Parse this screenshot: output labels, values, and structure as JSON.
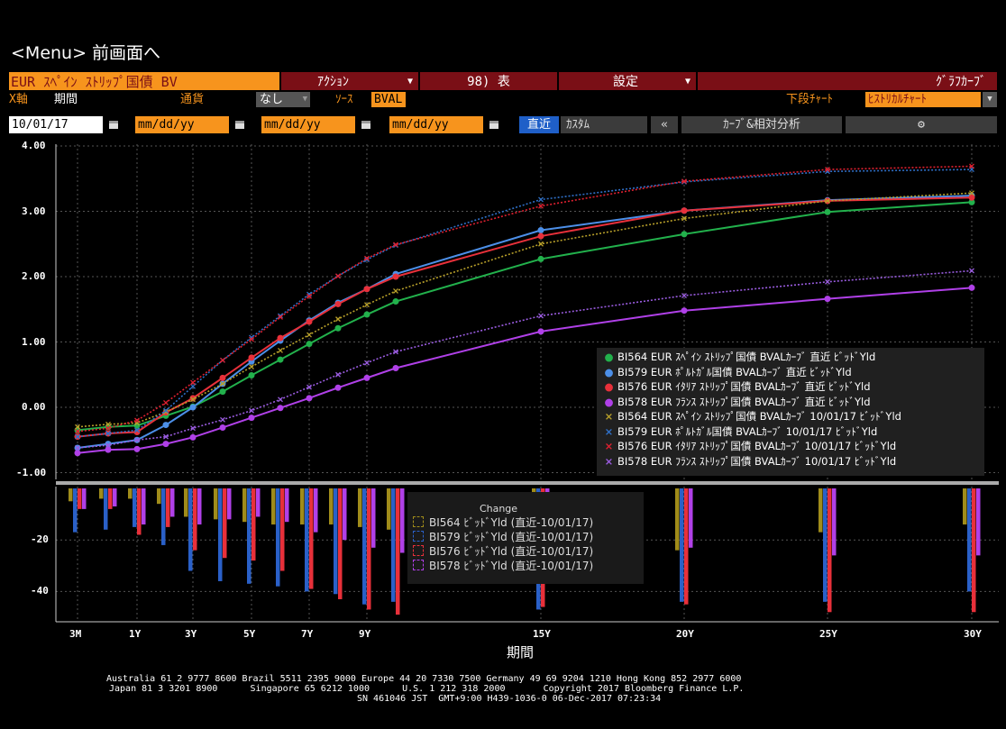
{
  "menu": "<Menu> 前画面へ",
  "toolbar": {
    "security": "EUR ｽﾍﾟｲﾝ ｽﾄﾘｯﾌﾟ国債 BV",
    "actions": "ｱｸｼｮﾝ",
    "table": "98) 表",
    "settings": "設定",
    "graph": "ｸﾞﾗﾌｶｰﾌﾞ"
  },
  "row2": {
    "xaxis_label": "X軸",
    "xaxis_value": "期間",
    "currency_label": "通貨",
    "currency_value": "なし",
    "source_label": "ｿｰｽ",
    "source_value": "BVAL",
    "lower_chart_label": "下段ﾁｬｰﾄ",
    "lower_chart_value": "ﾋｽﾄﾘｶﾙﾁｬｰﾄ"
  },
  "row3": {
    "date1": "10/01/17",
    "date2": "mm/dd/yy",
    "date3": "mm/dd/yy",
    "date4": "mm/dd/yy",
    "recent_button": "直近",
    "custom_button": "ｶｽﾀﾑ",
    "collapse": "«",
    "curve_analysis": "ｶｰﾌﾞ&相対分析",
    "gear": "⚙"
  },
  "chart_data": [
    {
      "type": "line",
      "x": [
        "3M",
        "6M",
        "1Y",
        "2Y",
        "3Y",
        "4Y",
        "5Y",
        "6Y",
        "7Y",
        "8Y",
        "9Y",
        "10Y",
        "15Y",
        "20Y",
        "25Y",
        "30Y"
      ],
      "xticks": [
        "3M",
        "1Y",
        "3Y",
        "5Y",
        "7Y",
        "9Y",
        "15Y",
        "20Y",
        "25Y",
        "30Y"
      ],
      "xlabel": "期間",
      "ylim": [
        -1.0,
        4.0
      ],
      "yticks": [
        "4.00",
        "3.00",
        "2.00",
        "1.00",
        "0.00",
        "-1.00"
      ],
      "grid": true,
      "legend": "bottom-right",
      "series": [
        {
          "name": "BI564 EUR ｽﾍﾟｲﾝ ｽﾄﾘｯﾌﾟ国債 BVALｶｰﾌﾞ 直近 ﾋﾞｯﾄﾞYld",
          "color": "#22b14c",
          "style": "solid",
          "marker": "dot",
          "values": [
            -0.35,
            -0.3,
            -0.28,
            -0.13,
            0.01,
            0.24,
            0.49,
            0.73,
            0.97,
            1.21,
            1.42,
            1.62,
            2.27,
            2.65,
            2.99,
            3.14
          ]
        },
        {
          "name": "BI579 EUR ﾎﾟﾙﾄｶﾞﾙ国債 BVALｶｰﾌﾞ 直近 ﾋﾞｯﾄﾞYld",
          "color": "#4c8fe8",
          "style": "solid",
          "marker": "dot",
          "values": [
            -0.62,
            -0.56,
            -0.5,
            -0.27,
            0.0,
            0.36,
            0.7,
            1.02,
            1.33,
            1.6,
            1.81,
            2.04,
            2.71,
            3.01,
            3.17,
            3.24
          ]
        },
        {
          "name": "BI576 EUR ｲﾀﾘｱ ｽﾄﾘｯﾌﾟ国債 BVALｶｰﾌﾞ 直近 ﾋﾞｯﾄﾞYld",
          "color": "#e8303a",
          "style": "solid",
          "marker": "dot",
          "values": [
            -0.45,
            -0.4,
            -0.38,
            -0.08,
            0.14,
            0.45,
            0.76,
            1.06,
            1.31,
            1.58,
            1.81,
            2.0,
            2.62,
            3.01,
            3.16,
            3.21
          ]
        },
        {
          "name": "BI578 EUR ﾌﾗﾝｽ ｽﾄﾘｯﾌﾟ国債 BVALｶｰﾌﾞ 直近 ﾋﾞｯﾄﾞYld",
          "color": "#b040e8",
          "style": "solid",
          "marker": "dot",
          "values": [
            -0.7,
            -0.65,
            -0.64,
            -0.56,
            -0.46,
            -0.31,
            -0.16,
            -0.01,
            0.14,
            0.3,
            0.45,
            0.6,
            1.16,
            1.48,
            1.66,
            1.83
          ]
        },
        {
          "name": "BI564 EUR ｽﾍﾟｲﾝ ｽﾄﾘｯﾌﾟ国債 BVALｶｰﾌﾞ 10/01/17 ﾋﾞｯﾄﾞYld",
          "color": "#b8a02a",
          "style": "dotted",
          "marker": "x",
          "values": [
            -0.3,
            -0.26,
            -0.24,
            -0.07,
            0.12,
            0.36,
            0.62,
            0.87,
            1.11,
            1.35,
            1.57,
            1.78,
            2.5,
            2.89,
            3.16,
            3.28
          ]
        },
        {
          "name": "BI579 EUR ﾎﾟﾙﾄｶﾞﾙ国債 BVALｶｰﾌﾞ 10/01/17 ﾋﾞｯﾄﾞYld",
          "color": "#2f70c8",
          "style": "dotted",
          "marker": "x",
          "values": [
            -0.45,
            -0.4,
            -0.35,
            -0.05,
            0.32,
            0.72,
            1.07,
            1.4,
            1.73,
            2.01,
            2.26,
            2.48,
            3.18,
            3.45,
            3.61,
            3.64
          ]
        },
        {
          "name": "BI576 EUR ｲﾀﾘｱ ｽﾄﾘｯﾌﾟ国債 BVALｶｰﾌﾞ 10/01/17 ﾋﾞｯﾄﾞYld",
          "color": "#e02030",
          "style": "dotted",
          "marker": "x",
          "values": [
            -0.37,
            -0.32,
            -0.2,
            0.07,
            0.38,
            0.72,
            1.04,
            1.38,
            1.7,
            2.01,
            2.28,
            2.49,
            3.08,
            3.46,
            3.64,
            3.69
          ]
        },
        {
          "name": "BI578 EUR ﾌﾗﾝｽ ｽﾄﾘｯﾌﾟ国債 BVALｶｰﾌﾞ 10/01/17 ﾋﾞｯﾄﾞYld",
          "color": "#9a5ce0",
          "style": "dotted",
          "marker": "x",
          "values": [
            -0.62,
            -0.58,
            -0.5,
            -0.45,
            -0.32,
            -0.19,
            -0.05,
            0.12,
            0.31,
            0.5,
            0.68,
            0.85,
            1.4,
            1.71,
            1.92,
            2.09
          ]
        }
      ]
    },
    {
      "type": "bar",
      "title": "Change",
      "ylim": [
        -50,
        2
      ],
      "yticks": [
        "-20",
        "-40"
      ],
      "categories": [
        "3M",
        "6M",
        "1Y",
        "2Y",
        "3Y",
        "4Y",
        "5Y",
        "6Y",
        "7Y",
        "8Y",
        "9Y",
        "10Y",
        "15Y",
        "20Y",
        "25Y",
        "30Y"
      ],
      "series": [
        {
          "name": "BI564 ﾋﾞｯﾄﾞYld (直近-10/01/17)",
          "color": "#a08c1a",
          "values": [
            -5,
            -4,
            -4,
            -6,
            -11,
            -12,
            -13,
            -14,
            -14,
            -14,
            -15,
            -16,
            -23,
            -24,
            -17,
            -14
          ]
        },
        {
          "name": "BI579 ﾋﾞｯﾄﾞYld (直近-10/01/17)",
          "color": "#2a60c8",
          "values": [
            -17,
            -16,
            -15,
            -22,
            -32,
            -36,
            -37,
            -38,
            -40,
            -41,
            -45,
            -44,
            -47,
            -44,
            -44,
            -40
          ]
        },
        {
          "name": "BI576 ﾋﾞｯﾄﾞYld (直近-10/01/17)",
          "color": "#e8303a",
          "values": [
            -8,
            -8,
            -18,
            -15,
            -24,
            -27,
            -28,
            -32,
            -39,
            -43,
            -47,
            -49,
            -46,
            -45,
            -48,
            -48
          ]
        },
        {
          "name": "BI578 ﾋﾞｯﾄﾞYld (直近-10/01/17)",
          "color": "#b040e8",
          "values": [
            -8,
            -7,
            -14,
            -11,
            -14,
            -12,
            -11,
            -13,
            -17,
            -20,
            -23,
            -25,
            -24,
            -23,
            -26,
            -26
          ]
        }
      ]
    }
  ],
  "legend_change_title": "Change",
  "footer": {
    "line1": "Australia 61 2 9777 8600 Brazil 5511 2395 9000 Europe 44 20 7330 7500 Germany 49 69 9204 1210 Hong Kong 852 2977 6000",
    "line2": "Japan 81 3 3201 8900      Singapore 65 6212 1000      U.S. 1 212 318 2000       Copyright 2017 Bloomberg Finance L.P.",
    "line3": "SN 461046 JST  GMT+9:00 H439-1036-0 06-Dec-2017 07:23:34"
  }
}
